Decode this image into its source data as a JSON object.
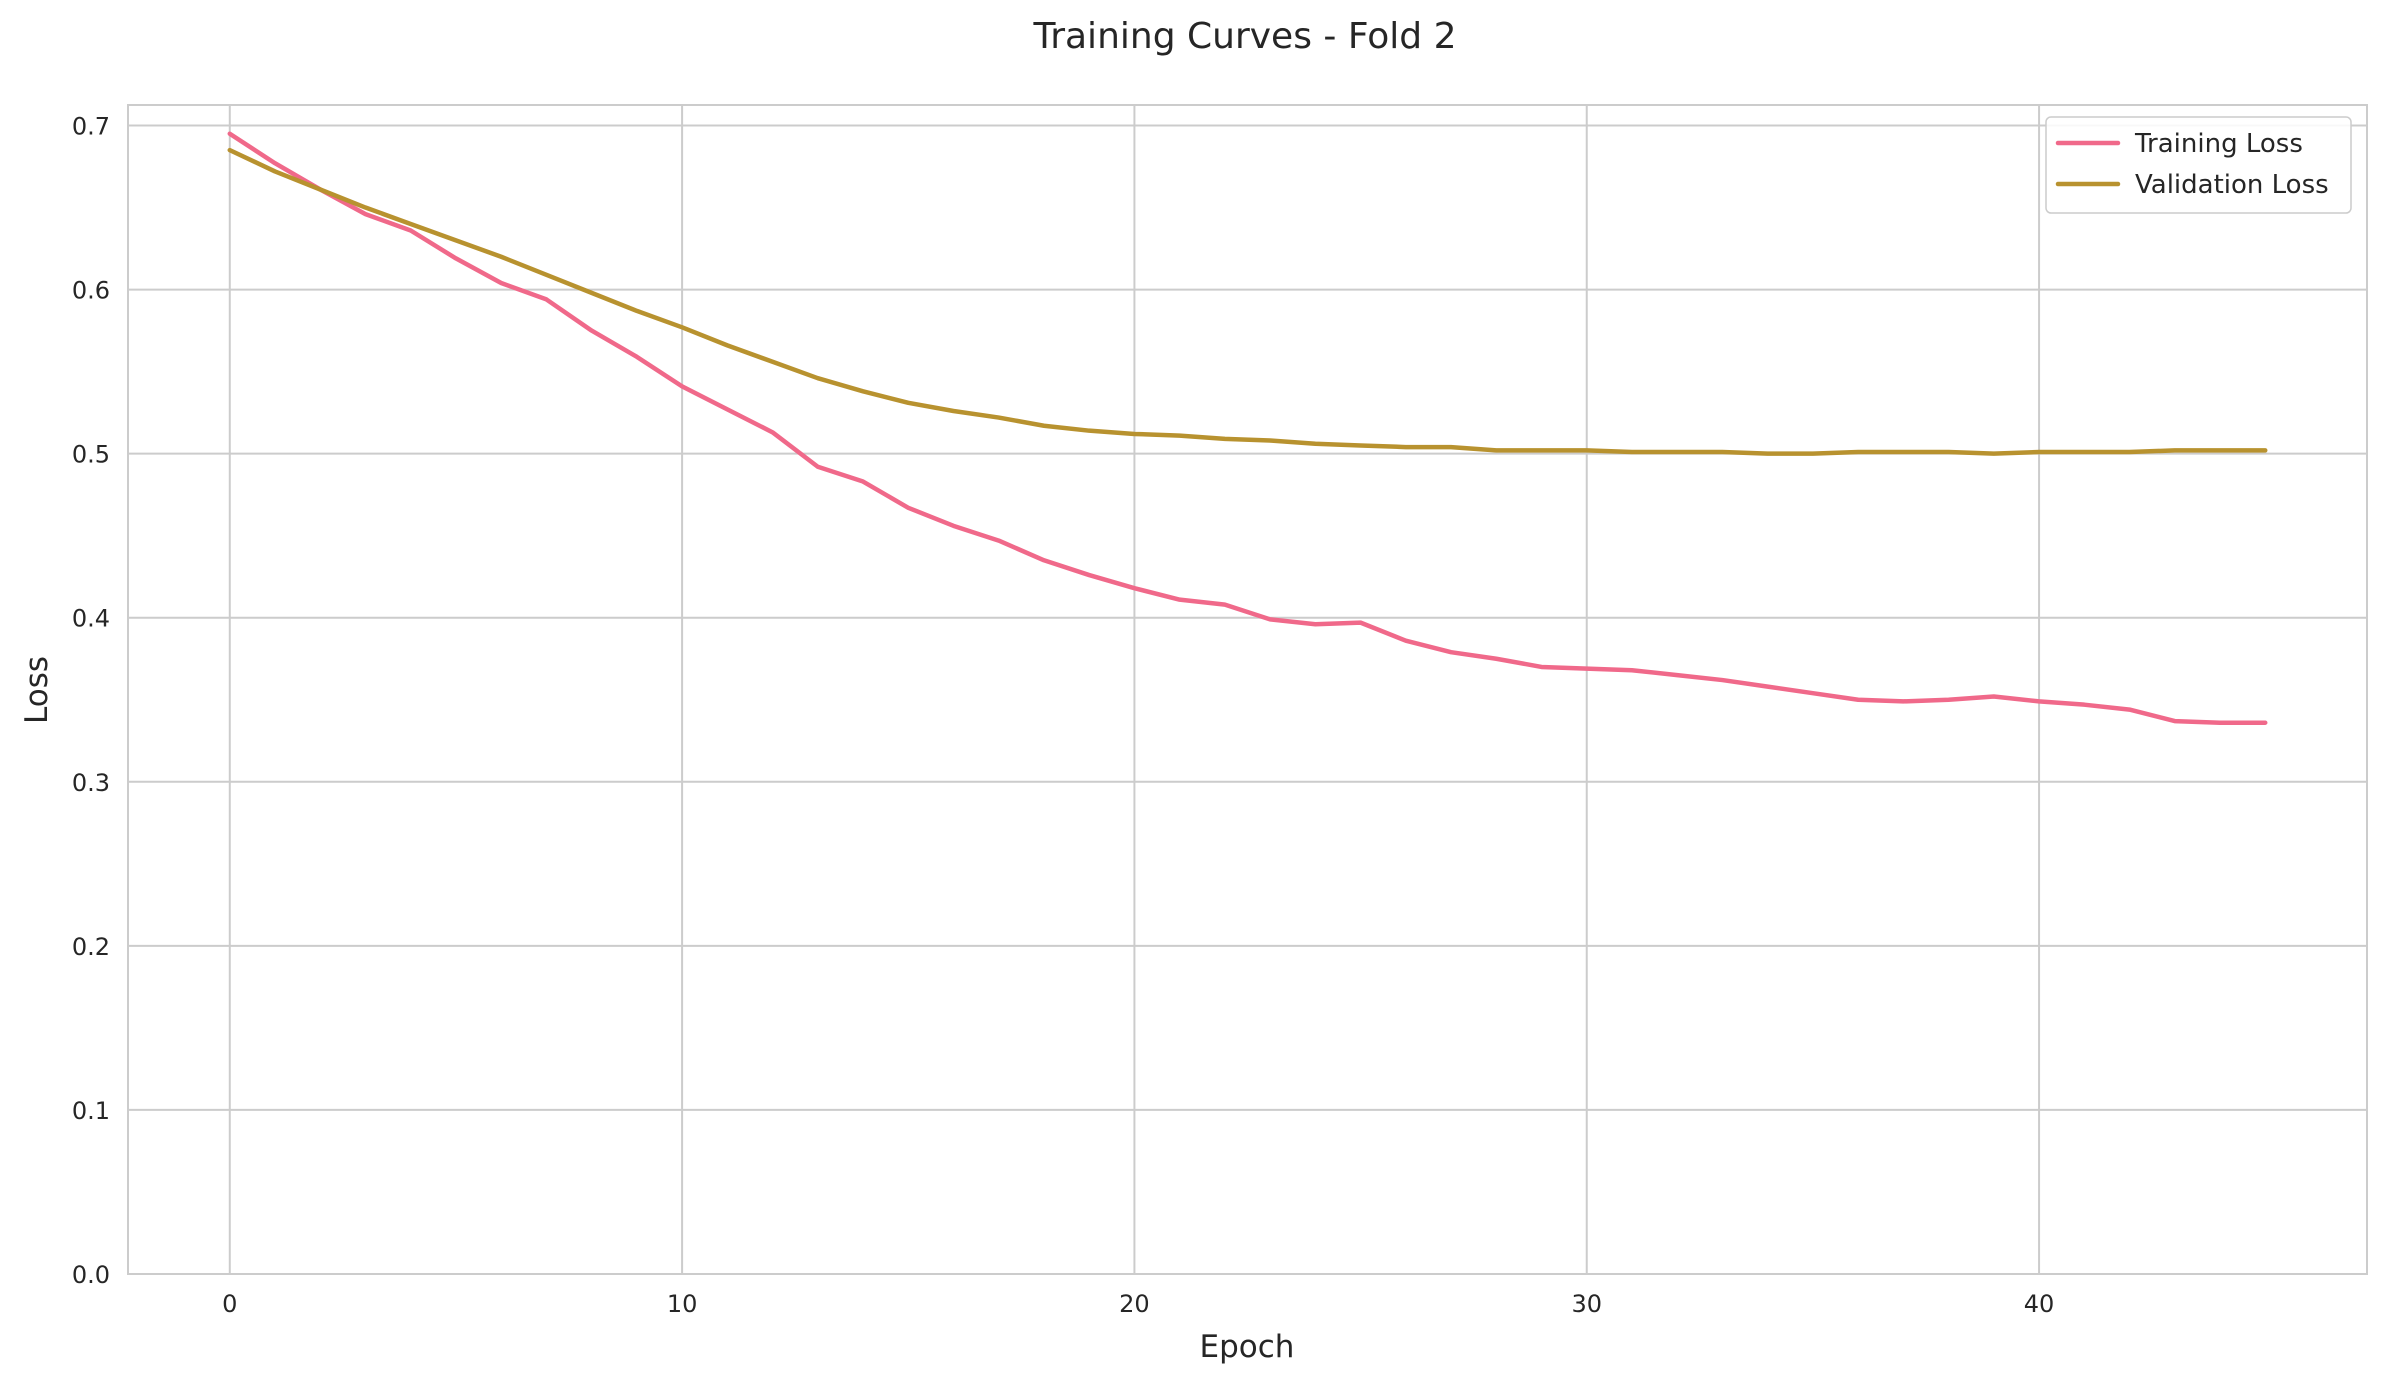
{
  "chart_data": {
    "type": "line",
    "title": "Training Curves - Fold 2",
    "xlabel": "Epoch",
    "ylabel": "Loss",
    "xlim": [
      -2.25,
      47.25
    ],
    "ylim": [
      0.0,
      0.7125
    ],
    "xticks": [
      0,
      10,
      20,
      30,
      40
    ],
    "xtick_labels": [
      "0",
      "10",
      "20",
      "30",
      "40"
    ],
    "yticks": [
      0.0,
      0.1,
      0.2,
      0.3,
      0.4,
      0.5,
      0.6,
      0.7
    ],
    "ytick_labels": [
      "0.0",
      "0.1",
      "0.2",
      "0.3",
      "0.4",
      "0.5",
      "0.6",
      "0.7"
    ],
    "grid": true,
    "legend_position": "top-right",
    "x": [
      0,
      1,
      2,
      3,
      4,
      5,
      6,
      7,
      8,
      9,
      10,
      11,
      12,
      13,
      14,
      15,
      16,
      17,
      18,
      19,
      20,
      21,
      22,
      23,
      24,
      25,
      26,
      27,
      28,
      29,
      30,
      31,
      32,
      33,
      34,
      35,
      36,
      37,
      38,
      39,
      40,
      41,
      42,
      43,
      44,
      45
    ],
    "series": [
      {
        "name": "Training Loss",
        "color": "#f0698a",
        "values": [
          0.695,
          0.677,
          0.661,
          0.646,
          0.636,
          0.619,
          0.604,
          0.594,
          0.575,
          0.559,
          0.541,
          0.527,
          0.513,
          0.492,
          0.483,
          0.467,
          0.456,
          0.447,
          0.435,
          0.426,
          0.418,
          0.411,
          0.408,
          0.399,
          0.396,
          0.397,
          0.386,
          0.379,
          0.375,
          0.37,
          0.369,
          0.368,
          0.365,
          0.362,
          0.358,
          0.354,
          0.35,
          0.349,
          0.35,
          0.352,
          0.349,
          0.347,
          0.344,
          0.337,
          0.336,
          0.336
        ]
      },
      {
        "name": "Validation Loss",
        "color": "#b8922f",
        "values": [
          0.685,
          0.672,
          0.661,
          0.65,
          0.64,
          0.63,
          0.62,
          0.609,
          0.598,
          0.587,
          0.577,
          0.566,
          0.556,
          0.546,
          0.538,
          0.531,
          0.526,
          0.522,
          0.517,
          0.514,
          0.512,
          0.511,
          0.509,
          0.508,
          0.506,
          0.505,
          0.504,
          0.504,
          0.502,
          0.502,
          0.502,
          0.501,
          0.501,
          0.501,
          0.5,
          0.5,
          0.501,
          0.501,
          0.501,
          0.5,
          0.501,
          0.501,
          0.501,
          0.502,
          0.502,
          0.502
        ]
      }
    ]
  }
}
